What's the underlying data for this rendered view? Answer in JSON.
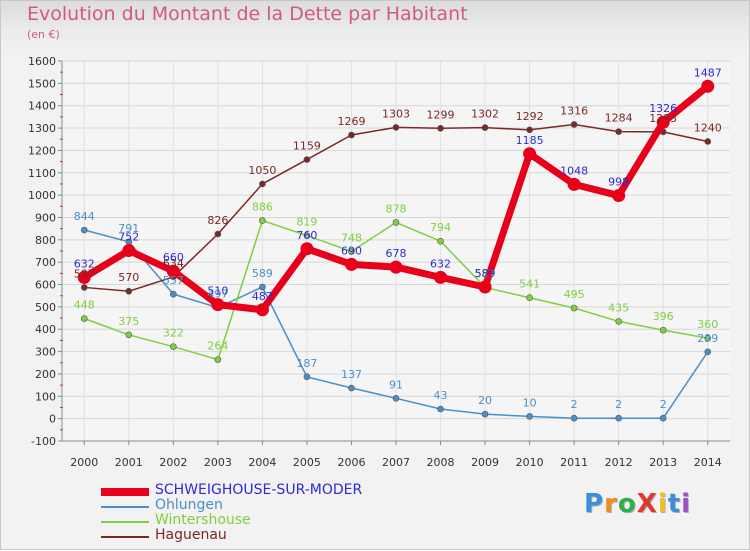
{
  "header": {
    "title": "Evolution du Montant de la Dette par Habitant",
    "subtitle": "(en €)"
  },
  "logo": {
    "text": "ProXiti",
    "letters": [
      "P",
      "r",
      "o",
      "X",
      "i",
      "t",
      "i"
    ],
    "letter_colors": [
      "#3a8fd8",
      "#f28a1e",
      "#2fae4f",
      "#e03a2f",
      "#f0c020",
      "#3a8fd8",
      "#9c4fc4"
    ]
  },
  "chart_data": {
    "type": "line",
    "x": [
      2000,
      2001,
      2002,
      2003,
      2004,
      2005,
      2006,
      2007,
      2008,
      2009,
      2010,
      2011,
      2012,
      2013,
      2014
    ],
    "ylim": [
      -100,
      1600
    ],
    "yticks": [
      -100,
      0,
      100,
      200,
      300,
      400,
      500,
      600,
      700,
      800,
      900,
      1000,
      1100,
      1200,
      1300,
      1400,
      1500,
      1600
    ],
    "grid": true,
    "legend_position": "bottom-left",
    "series": [
      {
        "name": "SCHWEIGHOUSE-SUR-MODER",
        "color": "#e8001a",
        "label_color": "#2b2bd8",
        "values": [
          632,
          752,
          660,
          510,
          487,
          760,
          690,
          678,
          632,
          589,
          1185,
          1048,
          998,
          1326,
          1487
        ]
      },
      {
        "name": "Ohlungen",
        "color": "#4a90c8",
        "label_color": "#4a90c8",
        "values": [
          844,
          791,
          557,
          497,
          589,
          187,
          137,
          91,
          43,
          20,
          10,
          2,
          2,
          2,
          299
        ]
      },
      {
        "name": "Wintershouse",
        "color": "#7ed040",
        "label_color": "#7ed040",
        "values": [
          448,
          375,
          322,
          264,
          886,
          819,
          748,
          878,
          794,
          587,
          541,
          495,
          435,
          396,
          360
        ]
      },
      {
        "name": "Haguenau",
        "color": "#7a2828",
        "label_color": "#7a2828",
        "values": [
          587,
          570,
          634,
          826,
          1050,
          1159,
          1269,
          1303,
          1299,
          1302,
          1292,
          1316,
          1284,
          1283,
          1240
        ]
      }
    ]
  }
}
